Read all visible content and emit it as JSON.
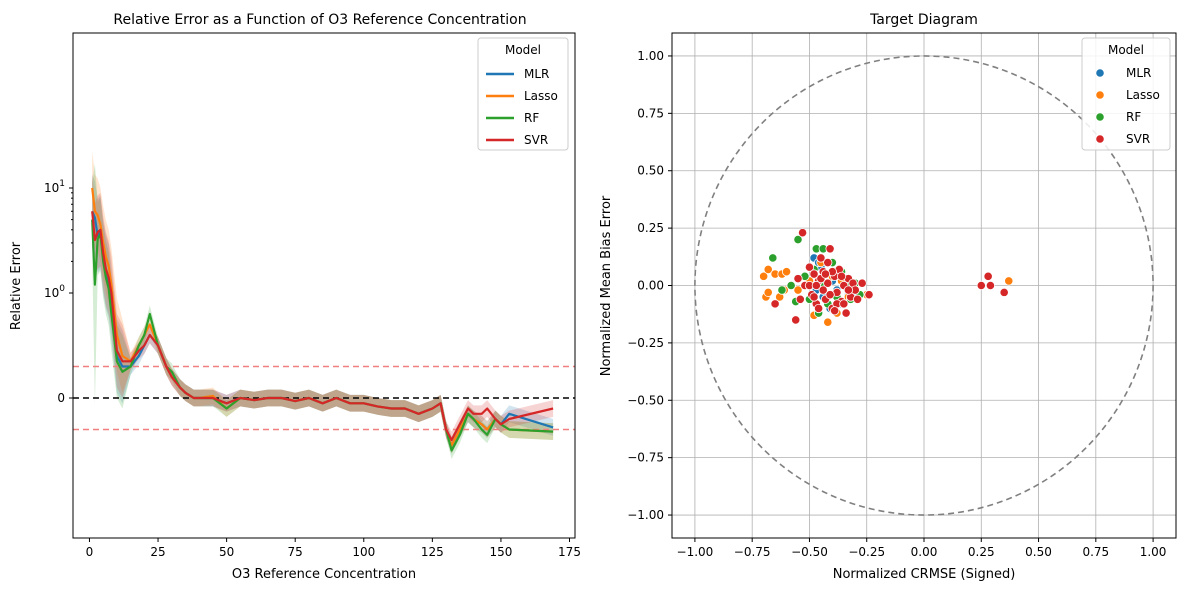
{
  "chart_data": [
    {
      "type": "line",
      "title": "Relative Error as a Function of O3 Reference Concentration",
      "xlabel": "O3 Reference Concentration",
      "ylabel": "Relative Error",
      "xlim": [
        -6,
        177
      ],
      "yscale": "symlog",
      "xticks": [
        {
          "v": 0,
          "label": "0"
        },
        {
          "v": 25,
          "label": "25"
        },
        {
          "v": 50,
          "label": "50"
        },
        {
          "v": 75,
          "label": "75"
        },
        {
          "v": 100,
          "label": "100"
        },
        {
          "v": 125,
          "label": "125"
        },
        {
          "v": 150,
          "label": "150"
        },
        {
          "v": 175,
          "label": "175"
        }
      ],
      "yticks": [
        {
          "v": 10,
          "base": "10",
          "exp": "1"
        },
        {
          "v": 1,
          "base": "10",
          "exp": "0"
        },
        {
          "v": 0,
          "base": "0",
          "exp": ""
        }
      ],
      "hlines": [
        {
          "y": 0,
          "color": "#000000",
          "style": "dashed"
        },
        {
          "y": 0.3,
          "color": "#f08080",
          "style": "dashed"
        },
        {
          "y": -0.3,
          "color": "#f08080",
          "style": "dashed"
        }
      ],
      "legend": {
        "title": "Model",
        "loc": "upper right"
      },
      "series": [
        {
          "name": "MLR",
          "color": "#1f77b4",
          "x": [
            1,
            2,
            3,
            4,
            5,
            6,
            7,
            8,
            10,
            12,
            15,
            18,
            20,
            22,
            25,
            28,
            30,
            33,
            35,
            38,
            40,
            45,
            50,
            55,
            60,
            65,
            70,
            75,
            80,
            85,
            90,
            95,
            100,
            105,
            110,
            115,
            120,
            125,
            128,
            130,
            132,
            135,
            138,
            140,
            143,
            145,
            148,
            150,
            153,
            169
          ],
          "y": [
            6,
            5.2,
            3.5,
            3.8,
            2.2,
            1.6,
            1.3,
            0.9,
            0.4,
            0.3,
            0.3,
            0.4,
            0.5,
            0.6,
            0.5,
            0.3,
            0.2,
            0.1,
            0.05,
            0,
            0,
            0,
            -0.05,
            0,
            -0.02,
            0,
            0,
            -0.03,
            0,
            -0.05,
            0,
            -0.05,
            -0.05,
            -0.08,
            -0.1,
            -0.1,
            -0.15,
            -0.1,
            -0.05,
            -0.3,
            -0.45,
            -0.3,
            -0.15,
            -0.2,
            -0.25,
            -0.3,
            -0.2,
            -0.25,
            -0.15,
            -0.28
          ]
        },
        {
          "name": "Lasso",
          "color": "#ff7f0e",
          "x": [
            1,
            2,
            3,
            4,
            5,
            6,
            7,
            8,
            10,
            12,
            15,
            18,
            20,
            22,
            25,
            28,
            30,
            33,
            35,
            38,
            40,
            45,
            50,
            55,
            60,
            65,
            70,
            75,
            80,
            85,
            90,
            95,
            100,
            105,
            110,
            115,
            120,
            125,
            128,
            130,
            132,
            135,
            138,
            140,
            143,
            145,
            148,
            150,
            153,
            169
          ],
          "y": [
            10,
            6,
            5.5,
            4.5,
            3,
            2.2,
            1.8,
            1.2,
            0.6,
            0.4,
            0.35,
            0.5,
            0.6,
            0.7,
            0.5,
            0.3,
            0.2,
            0.1,
            0.05,
            0,
            0,
            0.02,
            -0.1,
            0,
            -0.02,
            0,
            0,
            -0.03,
            0,
            -0.05,
            0,
            -0.05,
            -0.05,
            -0.08,
            -0.1,
            -0.1,
            -0.15,
            -0.1,
            -0.05,
            -0.3,
            -0.45,
            -0.3,
            -0.15,
            -0.2,
            -0.25,
            -0.3,
            -0.2,
            -0.25,
            -0.3,
            -0.32
          ]
        },
        {
          "name": "RF",
          "color": "#2ca02c",
          "x": [
            1,
            2,
            3,
            4,
            5,
            6,
            7,
            8,
            10,
            12,
            15,
            18,
            20,
            22,
            25,
            28,
            30,
            33,
            35,
            38,
            40,
            45,
            50,
            55,
            60,
            65,
            70,
            75,
            80,
            85,
            90,
            95,
            100,
            105,
            110,
            115,
            120,
            125,
            128,
            130,
            132,
            135,
            138,
            140,
            143,
            145,
            148,
            150,
            153,
            169
          ],
          "y": [
            5,
            1.2,
            3.3,
            3.6,
            2,
            1.4,
            1.1,
            0.8,
            0.35,
            0.25,
            0.3,
            0.5,
            0.6,
            0.8,
            0.5,
            0.3,
            0.25,
            0.1,
            0.05,
            0,
            0,
            0,
            -0.1,
            0,
            -0.02,
            0,
            0,
            -0.03,
            0,
            -0.05,
            0,
            -0.05,
            -0.05,
            -0.08,
            -0.1,
            -0.1,
            -0.15,
            -0.1,
            -0.05,
            -0.3,
            -0.5,
            -0.35,
            -0.15,
            -0.2,
            -0.3,
            -0.35,
            -0.2,
            -0.25,
            -0.3,
            -0.32
          ]
        },
        {
          "name": "SVR",
          "color": "#d62728",
          "x": [
            1,
            2,
            3,
            4,
            5,
            6,
            7,
            8,
            10,
            12,
            15,
            18,
            20,
            22,
            25,
            28,
            30,
            33,
            35,
            38,
            40,
            45,
            50,
            55,
            60,
            65,
            70,
            75,
            80,
            85,
            90,
            95,
            100,
            105,
            110,
            115,
            120,
            125,
            128,
            130,
            132,
            135,
            138,
            140,
            143,
            145,
            148,
            150,
            153,
            169
          ],
          "y": [
            6,
            3.2,
            3.8,
            4,
            2.4,
            1.7,
            1.4,
            1,
            0.45,
            0.35,
            0.35,
            0.45,
            0.5,
            0.6,
            0.5,
            0.3,
            0.2,
            0.1,
            0.05,
            0,
            0,
            0,
            -0.05,
            0,
            -0.02,
            0,
            0,
            -0.03,
            0,
            -0.05,
            0,
            -0.05,
            -0.05,
            -0.08,
            -0.1,
            -0.1,
            -0.15,
            -0.1,
            -0.05,
            -0.3,
            -0.4,
            -0.25,
            -0.1,
            -0.15,
            -0.15,
            -0.1,
            -0.2,
            -0.25,
            -0.2,
            -0.1
          ]
        }
      ]
    },
    {
      "type": "scatter",
      "title": "Target Diagram",
      "xlabel": "Normalized CRMSE (Signed)",
      "ylabel": "Normalized Mean Bias Error",
      "xlim": [
        -1.1,
        1.1
      ],
      "ylim": [
        -1.1,
        1.1
      ],
      "grid": true,
      "unit_circle": {
        "radius": 1,
        "color": "#808080",
        "style": "dashed"
      },
      "xticks": [
        "−1.00",
        "−0.75",
        "−0.50",
        "−0.25",
        "0.00",
        "0.25",
        "0.50",
        "0.75",
        "1.00"
      ],
      "xtick_values": [
        -1,
        -0.75,
        -0.5,
        -0.25,
        0,
        0.25,
        0.5,
        0.75,
        1
      ],
      "yticks": [
        "−1.00",
        "−0.75",
        "−0.50",
        "−0.25",
        "0.00",
        "0.25",
        "0.50",
        "0.75",
        "1.00"
      ],
      "ytick_values": [
        -1,
        -0.75,
        -0.5,
        -0.25,
        0,
        0.25,
        0.5,
        0.75,
        1
      ],
      "legend": {
        "title": "Model",
        "loc": "upper right"
      },
      "series": [
        {
          "name": "MLR",
          "color": "#1f77b4",
          "points": [
            [
              -0.48,
              0.12
            ],
            [
              -0.45,
              0.08
            ],
            [
              -0.42,
              0.05
            ],
            [
              -0.4,
              0.02
            ],
            [
              -0.38,
              -0.02
            ],
            [
              -0.44,
              -0.05
            ],
            [
              -0.36,
              -0.08
            ],
            [
              -0.5,
              0.0
            ],
            [
              -0.33,
              -0.04
            ],
            [
              -0.46,
              0.1
            ],
            [
              -0.41,
              -0.1
            ],
            [
              -0.39,
              0.06
            ],
            [
              -0.35,
              0.0
            ],
            [
              -0.47,
              -0.02
            ],
            [
              -0.3,
              -0.05
            ]
          ]
        },
        {
          "name": "Lasso",
          "color": "#ff7f0e",
          "points": [
            [
              -0.7,
              0.04
            ],
            [
              -0.68,
              0.07
            ],
            [
              -0.65,
              0.05
            ],
            [
              -0.62,
              0.05
            ],
            [
              -0.6,
              0.06
            ],
            [
              -0.58,
              0.0
            ],
            [
              -0.69,
              -0.05
            ],
            [
              -0.68,
              -0.03
            ],
            [
              -0.63,
              -0.05
            ],
            [
              -0.61,
              -0.02
            ],
            [
              -0.48,
              -0.13
            ],
            [
              -0.42,
              -0.16
            ],
            [
              -0.38,
              -0.12
            ],
            [
              -0.36,
              0.02
            ],
            [
              -0.33,
              -0.05
            ],
            [
              -0.45,
              0.1
            ],
            [
              -0.55,
              -0.02
            ],
            [
              -0.5,
              0.02
            ],
            [
              -0.4,
              0.04
            ],
            [
              -0.3,
              -0.02
            ],
            [
              -0.25,
              -0.04
            ],
            [
              0.37,
              0.02
            ]
          ]
        },
        {
          "name": "RF",
          "color": "#2ca02c",
          "points": [
            [
              -0.66,
              0.12
            ],
            [
              -0.58,
              0.0
            ],
            [
              -0.56,
              -0.07
            ],
            [
              -0.55,
              0.2
            ],
            [
              -0.52,
              0.04
            ],
            [
              -0.5,
              -0.06
            ],
            [
              -0.47,
              0.16
            ],
            [
              -0.44,
              0.16
            ],
            [
              -0.42,
              -0.08
            ],
            [
              -0.4,
              0.1
            ],
            [
              -0.38,
              -0.05
            ],
            [
              -0.36,
              0.06
            ],
            [
              -0.34,
              0.0
            ],
            [
              -0.32,
              -0.06
            ],
            [
              -0.46,
              -0.12
            ],
            [
              -0.48,
              0.07
            ],
            [
              -0.3,
              0.01
            ],
            [
              -0.62,
              -0.02
            ],
            [
              -0.28,
              -0.04
            ],
            [
              -0.44,
              0.0
            ]
          ]
        },
        {
          "name": "SVR",
          "color": "#d62728",
          "points": [
            [
              -0.65,
              -0.08
            ],
            [
              -0.56,
              -0.15
            ],
            [
              -0.55,
              0.03
            ],
            [
              -0.54,
              -0.06
            ],
            [
              -0.53,
              0.23
            ],
            [
              -0.52,
              0.0
            ],
            [
              -0.5,
              0.08
            ],
            [
              -0.49,
              -0.04
            ],
            [
              -0.48,
              0.05
            ],
            [
              -0.47,
              -0.08
            ],
            [
              -0.46,
              0.02
            ],
            [
              -0.45,
              0.12
            ],
            [
              -0.44,
              0.06
            ],
            [
              -0.43,
              -0.06
            ],
            [
              -0.42,
              0.01
            ],
            [
              -0.41,
              0.16
            ],
            [
              -0.4,
              -0.1
            ],
            [
              -0.39,
              0.04
            ],
            [
              -0.38,
              -0.03
            ],
            [
              -0.37,
              0.07
            ],
            [
              -0.36,
              -0.07
            ],
            [
              -0.35,
              0.0
            ],
            [
              -0.34,
              -0.12
            ],
            [
              -0.33,
              0.03
            ],
            [
              -0.32,
              -0.05
            ],
            [
              -0.31,
              0.01
            ],
            [
              -0.3,
              -0.02
            ],
            [
              -0.29,
              -0.06
            ],
            [
              -0.27,
              0.01
            ],
            [
              -0.24,
              -0.04
            ],
            [
              -0.46,
              -0.1
            ],
            [
              -0.44,
              -0.02
            ],
            [
              -0.42,
              0.1
            ],
            [
              -0.4,
              0.06
            ],
            [
              -0.38,
              -0.08
            ],
            [
              -0.36,
              0.04
            ],
            [
              -0.48,
              -0.05
            ],
            [
              -0.5,
              0.0
            ],
            [
              -0.45,
              0.03
            ],
            [
              -0.41,
              -0.04
            ],
            [
              -0.39,
              -0.11
            ],
            [
              -0.35,
              -0.08
            ],
            [
              -0.33,
              -0.02
            ],
            [
              -0.43,
              0.05
            ],
            [
              -0.47,
              0.0
            ],
            [
              0.25,
              0.0
            ],
            [
              0.28,
              0.04
            ],
            [
              0.29,
              0.0
            ],
            [
              0.35,
              -0.03
            ]
          ]
        }
      ]
    }
  ]
}
